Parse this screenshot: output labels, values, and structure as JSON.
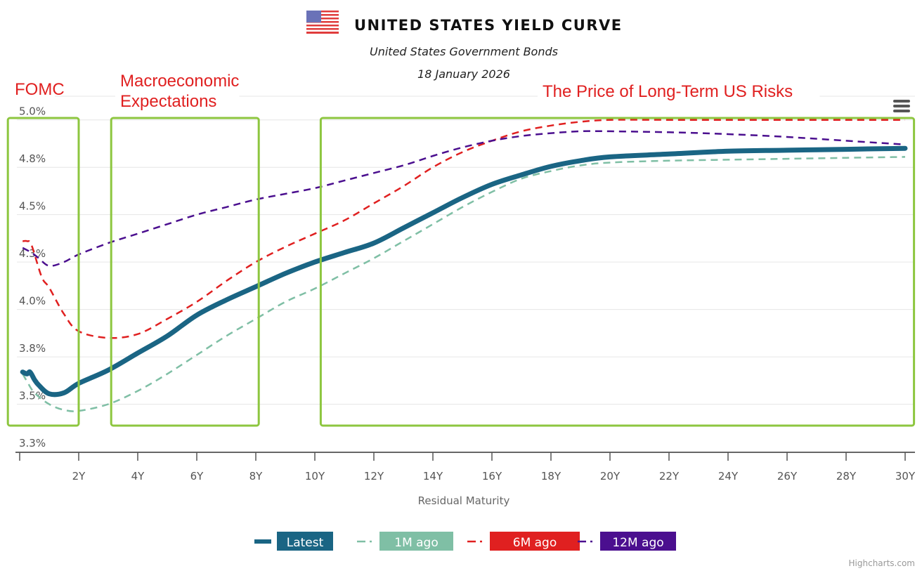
{
  "header": {
    "title": "UNITED STATES YIELD CURVE",
    "subtitle": "United States Government Bonds",
    "date": "18 January 2026",
    "flag_icon": "us-flag-icon"
  },
  "annotations": [
    {
      "label_lines": [
        "FOMC"
      ],
      "x_range_years": [
        -0.4,
        2.0
      ]
    },
    {
      "label_lines": [
        "Macroeconomic",
        "Expectations"
      ],
      "x_range_years": [
        3.1,
        8.1
      ]
    },
    {
      "label_lines": [
        "The Price of Long-Term US Risks"
      ],
      "x_range_years": [
        10.2,
        30.3
      ]
    }
  ],
  "annotation_color": "#8dc63f",
  "menu_icon": "hamburger-menu-icon",
  "credit": "Highcharts.com",
  "chart_data": {
    "type": "line",
    "title": "UNITED STATES YIELD CURVE",
    "subtitle": "United States Government Bonds",
    "xlabel": "Residual Maturity",
    "ylabel": "",
    "xlim": [
      0,
      30
    ],
    "ylim": [
      3.25,
      5.125
    ],
    "x_ticks": [
      0,
      2,
      4,
      6,
      8,
      10,
      12,
      14,
      16,
      18,
      20,
      22,
      24,
      26,
      28,
      30
    ],
    "x_tick_labels": [
      "",
      "2Y",
      "4Y",
      "6Y",
      "8Y",
      "10Y",
      "12Y",
      "14Y",
      "16Y",
      "18Y",
      "20Y",
      "22Y",
      "24Y",
      "26Y",
      "28Y",
      "30Y"
    ],
    "y_ticks": [
      3.25,
      3.5,
      3.75,
      4.0,
      4.25,
      4.5,
      4.75,
      5.0
    ],
    "y_tick_labels": [
      "3.3%",
      "3.5%",
      "3.8%",
      "4.0%",
      "4.3%",
      "4.5%",
      "4.8%",
      "5.0%"
    ],
    "grid": true,
    "legend_position": "bottom-center",
    "series": [
      {
        "name": "Latest",
        "color": "#1a6584",
        "dash": "solid",
        "points": [
          [
            0.1,
            3.67
          ],
          [
            0.25,
            3.66
          ],
          [
            0.35,
            3.67
          ],
          [
            0.5,
            3.63
          ],
          [
            0.65,
            3.6
          ],
          [
            1,
            3.555
          ],
          [
            1.5,
            3.56
          ],
          [
            2,
            3.61
          ],
          [
            3,
            3.68
          ],
          [
            4,
            3.77
          ],
          [
            5,
            3.86
          ],
          [
            6,
            3.97
          ],
          [
            7,
            4.05
          ],
          [
            8,
            4.12
          ],
          [
            9,
            4.19
          ],
          [
            10,
            4.25
          ],
          [
            11,
            4.3
          ],
          [
            12,
            4.35
          ],
          [
            13,
            4.43
          ],
          [
            14,
            4.51
          ],
          [
            15,
            4.59
          ],
          [
            16,
            4.66
          ],
          [
            17,
            4.71
          ],
          [
            18,
            4.755
          ],
          [
            19,
            4.785
          ],
          [
            20,
            4.805
          ],
          [
            22,
            4.82
          ],
          [
            24,
            4.835
          ],
          [
            26,
            4.84
          ],
          [
            28,
            4.845
          ],
          [
            30,
            4.85
          ]
        ]
      },
      {
        "name": "1M ago",
        "color": "#7fbfa5",
        "dash": "dash",
        "points": [
          [
            0.1,
            3.66
          ],
          [
            0.25,
            3.62
          ],
          [
            0.5,
            3.56
          ],
          [
            1,
            3.5
          ],
          [
            1.5,
            3.47
          ],
          [
            2,
            3.465
          ],
          [
            3,
            3.5
          ],
          [
            4,
            3.57
          ],
          [
            5,
            3.66
          ],
          [
            6,
            3.76
          ],
          [
            7,
            3.86
          ],
          [
            8,
            3.95
          ],
          [
            9,
            4.04
          ],
          [
            10,
            4.11
          ],
          [
            11,
            4.19
          ],
          [
            12,
            4.27
          ],
          [
            13,
            4.36
          ],
          [
            14,
            4.45
          ],
          [
            15,
            4.54
          ],
          [
            16,
            4.62
          ],
          [
            17,
            4.69
          ],
          [
            18,
            4.73
          ],
          [
            19,
            4.76
          ],
          [
            20,
            4.775
          ],
          [
            22,
            4.785
          ],
          [
            24,
            4.79
          ],
          [
            26,
            4.795
          ],
          [
            28,
            4.8
          ],
          [
            30,
            4.805
          ]
        ]
      },
      {
        "name": "6M ago",
        "color": "#e02020",
        "dash": "dash",
        "points": [
          [
            0.1,
            4.36
          ],
          [
            0.25,
            4.36
          ],
          [
            0.4,
            4.34
          ],
          [
            0.75,
            4.17
          ],
          [
            1,
            4.115
          ],
          [
            1.5,
            3.976
          ],
          [
            2,
            3.885
          ],
          [
            3,
            3.85
          ],
          [
            4,
            3.87
          ],
          [
            5,
            3.95
          ],
          [
            6,
            4.04
          ],
          [
            7,
            4.15
          ],
          [
            8,
            4.25
          ],
          [
            9,
            4.33
          ],
          [
            10,
            4.4
          ],
          [
            11,
            4.47
          ],
          [
            12,
            4.56
          ],
          [
            13,
            4.65
          ],
          [
            14,
            4.75
          ],
          [
            15,
            4.83
          ],
          [
            16,
            4.89
          ],
          [
            17,
            4.94
          ],
          [
            18,
            4.97
          ],
          [
            19,
            4.99
          ],
          [
            20,
            5.0
          ],
          [
            22,
            5.0
          ],
          [
            24,
            5.0
          ],
          [
            26,
            5.0
          ],
          [
            28,
            5.0
          ],
          [
            30,
            5.0
          ]
        ]
      },
      {
        "name": "12M ago",
        "color": "#4b0f8f",
        "dash": "dash",
        "points": [
          [
            0.1,
            4.325
          ],
          [
            0.4,
            4.3
          ],
          [
            0.65,
            4.27
          ],
          [
            1,
            4.23
          ],
          [
            1.5,
            4.25
          ],
          [
            2,
            4.29
          ],
          [
            3,
            4.35
          ],
          [
            4,
            4.4
          ],
          [
            5,
            4.45
          ],
          [
            6,
            4.5
          ],
          [
            7,
            4.54
          ],
          [
            8,
            4.58
          ],
          [
            9,
            4.61
          ],
          [
            10,
            4.64
          ],
          [
            11,
            4.68
          ],
          [
            12,
            4.72
          ],
          [
            13,
            4.76
          ],
          [
            14,
            4.81
          ],
          [
            15,
            4.855
          ],
          [
            16,
            4.89
          ],
          [
            17,
            4.915
          ],
          [
            18,
            4.93
          ],
          [
            19,
            4.94
          ],
          [
            20,
            4.94
          ],
          [
            22,
            4.935
          ],
          [
            24,
            4.925
          ],
          [
            26,
            4.91
          ],
          [
            28,
            4.89
          ],
          [
            30,
            4.87
          ]
        ]
      }
    ]
  }
}
